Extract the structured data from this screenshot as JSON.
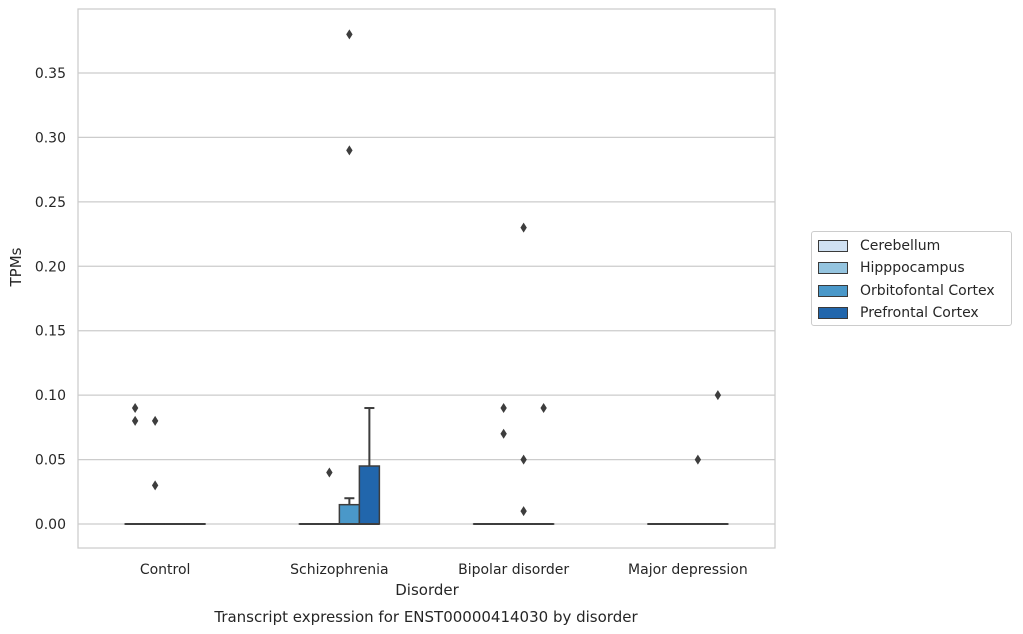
{
  "chart_data": {
    "type": "box",
    "title": "",
    "caption": "Transcript expression for ENST00000414030 by disorder",
    "xlabel": "Disorder",
    "ylabel": "TPMs",
    "ylim": [
      -0.018,
      0.397
    ],
    "yticks": [
      "0.00",
      "0.05",
      "0.10",
      "0.15",
      "0.20",
      "0.25",
      "0.30",
      "0.35"
    ],
    "ytick_values": [
      0,
      0.05,
      0.1,
      0.15,
      0.2,
      0.25,
      0.3,
      0.35
    ],
    "categories": [
      "Control",
      "Schizophrenia",
      "Bipolar disorder",
      "Major depression"
    ],
    "grid": "horizontal",
    "legend_position": "right",
    "series": [
      {
        "name": "Cerebellum",
        "color": "#d0e1f2",
        "boxes": [
          {
            "q1": 0,
            "median": 0,
            "q3": 0,
            "whisker_low": 0,
            "whisker_high": 0,
            "outliers": [
              0.09,
              0.08
            ]
          },
          {
            "q1": 0,
            "median": 0,
            "q3": 0,
            "whisker_low": 0,
            "whisker_high": 0,
            "outliers": []
          },
          {
            "q1": 0,
            "median": 0,
            "q3": 0,
            "whisker_low": 0,
            "whisker_high": 0,
            "outliers": []
          },
          {
            "q1": 0,
            "median": 0,
            "q3": 0,
            "whisker_low": 0,
            "whisker_high": 0,
            "outliers": []
          }
        ]
      },
      {
        "name": "Hipppocampus",
        "color": "#94c4df",
        "boxes": [
          {
            "q1": 0,
            "median": 0,
            "q3": 0,
            "whisker_low": 0,
            "whisker_high": 0,
            "outliers": [
              0.08,
              0.03
            ]
          },
          {
            "q1": 0,
            "median": 0,
            "q3": 0,
            "whisker_low": 0,
            "whisker_high": 0,
            "outliers": [
              0.04
            ]
          },
          {
            "q1": 0,
            "median": 0,
            "q3": 0,
            "whisker_low": 0,
            "whisker_high": 0,
            "outliers": [
              0.09,
              0.07
            ]
          },
          {
            "q1": 0,
            "median": 0,
            "q3": 0,
            "whisker_low": 0,
            "whisker_high": 0,
            "outliers": []
          }
        ]
      },
      {
        "name": "Orbitofontal Cortex",
        "color": "#4a98c9",
        "boxes": [
          {
            "q1": 0,
            "median": 0,
            "q3": 0,
            "whisker_low": 0,
            "whisker_high": 0,
            "outliers": []
          },
          {
            "q1": 0,
            "median": 0,
            "q3": 0.015,
            "whisker_low": 0,
            "whisker_high": 0.02,
            "outliers": [
              0.38,
              0.29
            ]
          },
          {
            "q1": 0,
            "median": 0,
            "q3": 0,
            "whisker_low": 0,
            "whisker_high": 0,
            "outliers": [
              0.23,
              0.05,
              0.01
            ]
          },
          {
            "q1": 0,
            "median": 0,
            "q3": 0,
            "whisker_low": 0,
            "whisker_high": 0,
            "outliers": [
              0.05
            ]
          }
        ]
      },
      {
        "name": "Prefrontal Cortex",
        "color": "#2166ac",
        "boxes": [
          {
            "q1": 0,
            "median": 0,
            "q3": 0,
            "whisker_low": 0,
            "whisker_high": 0,
            "outliers": []
          },
          {
            "q1": 0,
            "median": 0,
            "q3": 0.045,
            "whisker_low": 0,
            "whisker_high": 0.09,
            "outliers": []
          },
          {
            "q1": 0,
            "median": 0,
            "q3": 0,
            "whisker_low": 0,
            "whisker_high": 0,
            "outliers": [
              0.09
            ]
          },
          {
            "q1": 0,
            "median": 0,
            "q3": 0,
            "whisker_low": 0,
            "whisker_high": 0,
            "outliers": [
              0.1
            ]
          }
        ]
      }
    ]
  }
}
